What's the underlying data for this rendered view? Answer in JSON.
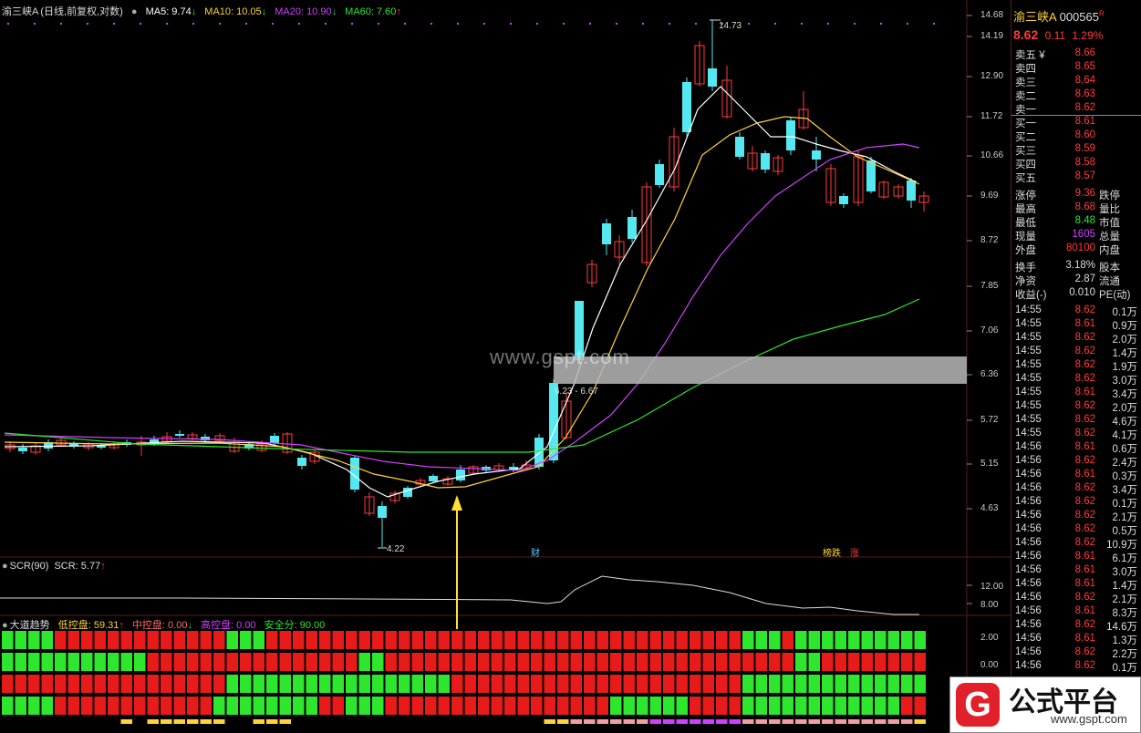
{
  "main_header": {
    "stock": "渝三峡A",
    "mode": "(日线,前复权,对数)",
    "ma5": "MA5: 9.74",
    "ma10": "MA10: 10.05",
    "ma20": "MA20: 10.90",
    "ma60": "MA60: 7.60",
    "arrow_down": "↓",
    "arrow_up": "↑"
  },
  "y_ticks": [
    "14.68",
    "14.19",
    "12.90",
    "11.72",
    "10.66",
    "9.69",
    "8.72",
    "7.85",
    "7.06",
    "6.36",
    "5.72",
    "5.15",
    "4.63"
  ],
  "annotations": {
    "high_label": "14.73",
    "low_label": "4.22",
    "range_label": "6.23 - 6.67",
    "cai": "财",
    "lb": "榜跌",
    "zhang": "涨"
  },
  "scr_header": {
    "name": "SCR(90)",
    "value": "SCR: 5.77",
    "arrow": "↑"
  },
  "scr_ticks": [
    "12.00",
    "8.00"
  ],
  "dd_header": {
    "name": "大道趋势",
    "low": "低控盘: 59.31",
    "mid": "中控盘: 0.00",
    "high": "高控盘: 0.00",
    "safe": "安全分: 90.00",
    "arrow_up": "↑",
    "arrow_down": "↓"
  },
  "dd_ticks": [
    "2.00",
    "0.00"
  ],
  "watermark": "www.gspt.com",
  "right": {
    "name": "渝三峡A",
    "code": "000565",
    "r_flag": "R",
    "price": "8.62",
    "change": "0.11",
    "pct": "1.29%",
    "order_book": [
      {
        "label": "卖五 ¥",
        "price": "8.66",
        "color": "red"
      },
      {
        "label": "卖四",
        "price": "8.65",
        "color": "red"
      },
      {
        "label": "卖三",
        "price": "8.64",
        "color": "red"
      },
      {
        "label": "卖二",
        "price": "8.63",
        "color": "red"
      },
      {
        "label": "卖一",
        "price": "8.62",
        "color": "red"
      },
      {
        "label": "买一",
        "price": "8.61",
        "color": "red"
      },
      {
        "label": "买二",
        "price": "8.60",
        "color": "red"
      },
      {
        "label": "买三",
        "price": "8.59",
        "color": "red"
      },
      {
        "label": "买四",
        "price": "8.58",
        "color": "red"
      },
      {
        "label": "买五",
        "price": "8.57",
        "color": "red"
      }
    ],
    "stats": [
      {
        "l": "涨停",
        "v": "9.36",
        "vc": "red",
        "r": "跌停"
      },
      {
        "l": "最高",
        "v": "8.68",
        "vc": "red",
        "r": "量比"
      },
      {
        "l": "最低",
        "v": "8.48",
        "vc": "green",
        "r": "市值"
      },
      {
        "l": "现量",
        "v": "1605",
        "vc": "magenta",
        "r": "总量"
      },
      {
        "l": "外盘",
        "v": "80100",
        "vc": "red",
        "r": "内盘"
      },
      {
        "l": "换手",
        "v": "3.18%",
        "vc": "white",
        "r": "股本"
      },
      {
        "l": "净资",
        "v": "2.87",
        "vc": "white",
        "r": "流通"
      },
      {
        "l": "收益(-)",
        "v": "0.010",
        "vc": "white",
        "r": "PE(动)"
      }
    ],
    "trades": [
      {
        "t": "14:55",
        "p": "8.62",
        "v": "0.1万"
      },
      {
        "t": "14:55",
        "p": "8.61",
        "v": "0.9万"
      },
      {
        "t": "14:55",
        "p": "8.62",
        "v": "2.0万"
      },
      {
        "t": "14:55",
        "p": "8.62",
        "v": "1.4万"
      },
      {
        "t": "14:55",
        "p": "8.62",
        "v": "1.9万"
      },
      {
        "t": "14:55",
        "p": "8.62",
        "v": "3.0万"
      },
      {
        "t": "14:55",
        "p": "8.61",
        "v": "3.4万"
      },
      {
        "t": "14:55",
        "p": "8.62",
        "v": "2.0万"
      },
      {
        "t": "14:55",
        "p": "8.62",
        "v": "4.6万"
      },
      {
        "t": "14:55",
        "p": "8.62",
        "v": "4.1万"
      },
      {
        "t": "14:56",
        "p": "8.61",
        "v": "0.6万"
      },
      {
        "t": "14:56",
        "p": "8.62",
        "v": "2.4万"
      },
      {
        "t": "14:56",
        "p": "8.61",
        "v": "0.3万"
      },
      {
        "t": "14:56",
        "p": "8.62",
        "v": "3.4万"
      },
      {
        "t": "14:56",
        "p": "8.62",
        "v": "0.1万"
      },
      {
        "t": "14:56",
        "p": "8.62",
        "v": "2.1万"
      },
      {
        "t": "14:56",
        "p": "8.62",
        "v": "0.5万"
      },
      {
        "t": "14:56",
        "p": "8.62",
        "v": "10.9万"
      },
      {
        "t": "14:56",
        "p": "8.61",
        "v": "6.1万"
      },
      {
        "t": "14:56",
        "p": "8.61",
        "v": "3.0万"
      },
      {
        "t": "14:56",
        "p": "8.61",
        "v": "1.4万"
      },
      {
        "t": "14:56",
        "p": "8.62",
        "v": "2.1万"
      },
      {
        "t": "14:56",
        "p": "8.61",
        "v": "8.3万"
      },
      {
        "t": "14:56",
        "p": "8.62",
        "v": "14.6万"
      },
      {
        "t": "14:56",
        "p": "8.61",
        "v": "1.3万"
      },
      {
        "t": "14:56",
        "p": "8.62",
        "v": "2.2万"
      },
      {
        "t": "14:56",
        "p": "8.62",
        "v": "0.1万"
      }
    ]
  },
  "logo": {
    "title": "公式平台",
    "site": "www.gspt.com",
    "glyph": "G"
  },
  "colors": {
    "up": "#ff3b3b",
    "down": "#55e8f0",
    "ma5": "#ffffff",
    "ma10": "#ffd33c",
    "ma20": "#d040ff",
    "ma60": "#2ee62e"
  }
}
